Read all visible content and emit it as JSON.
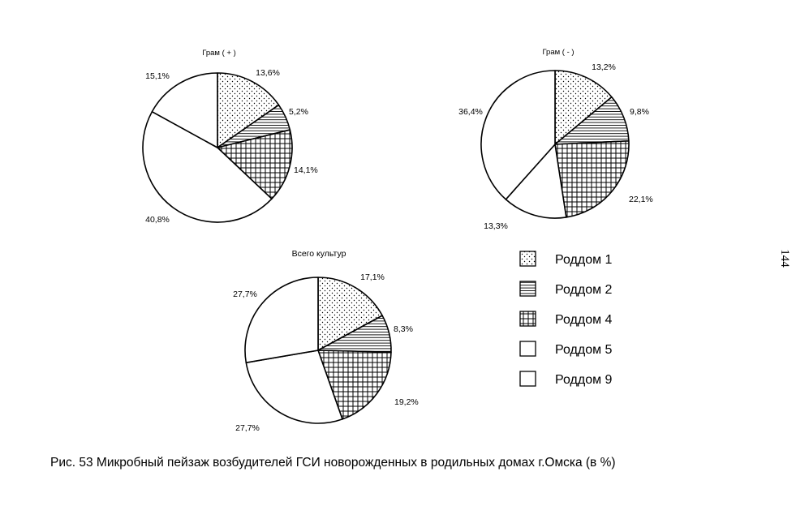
{
  "caption": "Рис. 53 Микробный пейзаж возбудителей ГСИ новорожденных в родильных домах г.Омска (в %)",
  "page_number": "144",
  "legend": [
    {
      "label": "Роддом 1",
      "pattern": "dots"
    },
    {
      "label": "Роддом 2",
      "pattern": "hlines"
    },
    {
      "label": "Роддом 4",
      "pattern": "grid"
    },
    {
      "label": "Роддом 5",
      "pattern": "blank"
    },
    {
      "label": "Роддом 9",
      "pattern": "blank"
    }
  ],
  "chart_data": [
    {
      "type": "pie",
      "title": "Грам ( + )",
      "categories": [
        "Роддом 1",
        "Роддом 2",
        "Роддом 4",
        "Роддом 5",
        "Роддом 9"
      ],
      "values": [
        13.6,
        5.2,
        14.1,
        40.8,
        15.1
      ],
      "value_labels": [
        "13,6%",
        "5,2%",
        "14,1%",
        "40,8%",
        "15,1%"
      ],
      "patterns": [
        "dots",
        "hlines",
        "grid",
        "blank",
        "blank"
      ]
    },
    {
      "type": "pie",
      "title": "Грам ( - )",
      "categories": [
        "Роддом 1",
        "Роддом 2",
        "Роддом 4",
        "Роддом 5",
        "Роддом 9"
      ],
      "values": [
        13.2,
        9.8,
        22.1,
        13.3,
        36.4
      ],
      "value_labels": [
        "13,2%",
        "9,8%",
        "22,1%",
        "13,3%",
        "36,4%"
      ],
      "patterns": [
        "dots",
        "hlines",
        "grid",
        "blank",
        "blank"
      ]
    },
    {
      "type": "pie",
      "title": "Всего культур",
      "categories": [
        "Роддом 1",
        "Роддом 2",
        "Роддом 4",
        "Роддом 5",
        "Роддом 9"
      ],
      "values": [
        17.1,
        8.3,
        19.2,
        27.7,
        27.7
      ],
      "value_labels": [
        "17,1%",
        "8,3%",
        "19,2%",
        "27,7%",
        "27,7%"
      ],
      "patterns": [
        "dots",
        "hlines",
        "grid",
        "blank",
        "blank"
      ]
    }
  ]
}
